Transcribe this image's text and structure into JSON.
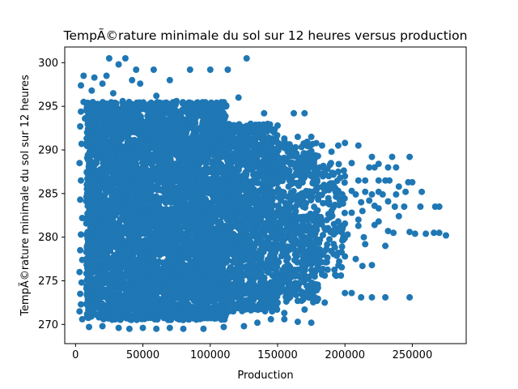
{
  "chart_data": {
    "type": "scatter",
    "title": "TempÃ©rature minimale du sol sur 12 heures versus production",
    "xlabel": "Production",
    "ylabel": "TempÃ©rature minimale du sol sur 12 heures",
    "xlim": [
      -8000,
      290000
    ],
    "ylim": [
      267.8,
      301.8
    ],
    "xticks": [
      0,
      50000,
      100000,
      150000,
      200000,
      250000
    ],
    "xtick_labels": [
      "0",
      "50000",
      "100000",
      "150000",
      "200000",
      "250000"
    ],
    "yticks": [
      270,
      275,
      280,
      285,
      290,
      295,
      300
    ],
    "ytick_labels": [
      "270",
      "275",
      "280",
      "285",
      "290",
      "295",
      "300"
    ],
    "grid": false,
    "legend": "none",
    "marker_color": "#1f77b4",
    "points": [
      [
        25000,
        300.5
      ],
      [
        37000,
        300.5
      ],
      [
        127000,
        300.5
      ],
      [
        32000,
        299.8
      ],
      [
        45000,
        299.2
      ],
      [
        58000,
        299.2
      ],
      [
        85000,
        299.2
      ],
      [
        100000,
        299.2
      ],
      [
        113000,
        299.2
      ],
      [
        6000,
        298.5
      ],
      [
        14000,
        298.3
      ],
      [
        23000,
        298.5
      ],
      [
        42000,
        298.0
      ],
      [
        70000,
        298.0
      ],
      [
        4000,
        297.4
      ],
      [
        20000,
        297.6
      ],
      [
        48000,
        297.6
      ],
      [
        12000,
        296.8
      ],
      [
        28000,
        296.5
      ],
      [
        60000,
        296.2
      ],
      [
        121000,
        296.0
      ],
      [
        6000,
        295.5
      ],
      [
        35000,
        295.6
      ],
      [
        75000,
        295.6
      ],
      [
        90000,
        295.4
      ],
      [
        110000,
        295.1
      ],
      [
        140000,
        294.2
      ],
      [
        162000,
        294.2
      ],
      [
        170000,
        294.2
      ],
      [
        7000,
        293.6
      ],
      [
        45000,
        293.8
      ],
      [
        105000,
        293.6
      ],
      [
        130000,
        293.0
      ],
      [
        150000,
        292.8
      ],
      [
        155000,
        291.3
      ],
      [
        165000,
        291.5
      ],
      [
        175000,
        291.5
      ],
      [
        183000,
        290.5
      ],
      [
        195000,
        290.5
      ],
      [
        200000,
        290.8
      ],
      [
        210000,
        290.5
      ],
      [
        190000,
        289.8
      ],
      [
        180000,
        289.3
      ],
      [
        220000,
        289.2
      ],
      [
        235000,
        289.2
      ],
      [
        248000,
        289.2
      ],
      [
        205000,
        288.5
      ],
      [
        225000,
        288.4
      ],
      [
        218000,
        288.0
      ],
      [
        222000,
        288.0
      ],
      [
        232000,
        288.0
      ],
      [
        238000,
        288.0
      ],
      [
        185000,
        287.8
      ],
      [
        195000,
        287.5
      ],
      [
        188000,
        287.0
      ],
      [
        200000,
        287.0
      ],
      [
        210000,
        286.5
      ],
      [
        215000,
        286.5
      ],
      [
        225000,
        286.5
      ],
      [
        230000,
        286.5
      ],
      [
        233000,
        286.5
      ],
      [
        247000,
        286.3
      ],
      [
        250000,
        286.3
      ],
      [
        185000,
        285.3
      ],
      [
        195000,
        285.3
      ],
      [
        205000,
        285.3
      ],
      [
        215000,
        285.2
      ],
      [
        225000,
        285.2
      ],
      [
        245000,
        285.2
      ],
      [
        257000,
        285.2
      ],
      [
        198000,
        284.9
      ],
      [
        208000,
        284.9
      ],
      [
        220000,
        284.9
      ],
      [
        228000,
        284.9
      ],
      [
        238000,
        284.9
      ],
      [
        240000,
        285.8
      ],
      [
        212000,
        284.0
      ],
      [
        218000,
        284.2
      ],
      [
        232000,
        284.1
      ],
      [
        222000,
        283.6
      ],
      [
        237000,
        283.5
      ],
      [
        244000,
        283.5
      ],
      [
        256000,
        283.5
      ],
      [
        267000,
        283.5
      ],
      [
        270000,
        283.5
      ],
      [
        190000,
        283.0
      ],
      [
        205000,
        282.8
      ],
      [
        213000,
        283.0
      ],
      [
        225000,
        283.3
      ],
      [
        195000,
        281.8
      ],
      [
        210000,
        282.0
      ],
      [
        225000,
        281.8
      ],
      [
        240000,
        282.4
      ],
      [
        185000,
        281.0
      ],
      [
        198000,
        280.9
      ],
      [
        210000,
        281.3
      ],
      [
        222000,
        281.4
      ],
      [
        232000,
        280.7
      ],
      [
        236000,
        280.5
      ],
      [
        248000,
        280.6
      ],
      [
        252000,
        280.4
      ],
      [
        260000,
        280.4
      ],
      [
        266000,
        280.5
      ],
      [
        270000,
        280.5
      ],
      [
        275000,
        280.2
      ],
      [
        202000,
        280.3
      ],
      [
        214000,
        280.0
      ],
      [
        215000,
        279.2
      ],
      [
        230000,
        279.0
      ],
      [
        185000,
        278.4
      ],
      [
        195000,
        278.2
      ],
      [
        200000,
        277.8
      ],
      [
        208000,
        277.5
      ],
      [
        213000,
        276.7
      ],
      [
        220000,
        276.8
      ],
      [
        180000,
        276.8
      ],
      [
        185000,
        275.6
      ],
      [
        197000,
        275.6
      ],
      [
        200000,
        273.6
      ],
      [
        205000,
        273.6
      ],
      [
        212000,
        273.1
      ],
      [
        220000,
        273.1
      ],
      [
        230000,
        273.1
      ],
      [
        248000,
        273.1
      ],
      [
        185000,
        272.5
      ],
      [
        165000,
        272.7
      ],
      [
        150000,
        272.5
      ],
      [
        180000,
        274.2
      ],
      [
        160000,
        274.5
      ],
      [
        145000,
        274.8
      ],
      [
        170000,
        271.7
      ],
      [
        155000,
        271.3
      ],
      [
        140000,
        271.8
      ],
      [
        145000,
        270.6
      ],
      [
        155000,
        270.6
      ],
      [
        165000,
        270.3
      ],
      [
        175000,
        270.2
      ],
      [
        135000,
        270.2
      ],
      [
        125000,
        269.8
      ],
      [
        110000,
        269.7
      ],
      [
        95000,
        269.5
      ],
      [
        80000,
        269.5
      ],
      [
        70000,
        269.6
      ],
      [
        60000,
        269.5
      ],
      [
        50000,
        269.6
      ],
      [
        40000,
        269.5
      ],
      [
        32000,
        269.6
      ],
      [
        20000,
        269.8
      ],
      [
        10000,
        269.7
      ],
      [
        5000,
        270.6
      ],
      [
        3000,
        271.5
      ],
      [
        4000,
        272.3
      ],
      [
        3500,
        273.5
      ],
      [
        4500,
        274.8
      ],
      [
        3000,
        276.0
      ],
      [
        5000,
        277.4
      ],
      [
        3500,
        278.5
      ],
      [
        4000,
        280.3
      ],
      [
        5000,
        282.2
      ],
      [
        3500,
        284.3
      ],
      [
        4000,
        286.5
      ],
      [
        3000,
        288.5
      ],
      [
        4500,
        290.7
      ],
      [
        3500,
        292.7
      ],
      [
        4000,
        294.4
      ]
    ],
    "dense_regions": [
      {
        "x": [
          8000,
          112000
        ],
        "y": [
          270.5,
          295.5
        ],
        "density": 1.0
      },
      {
        "x": [
          112000,
          150000
        ],
        "y": [
          271.5,
          293.0
        ],
        "density": 0.75
      },
      {
        "x": [
          150000,
          180000
        ],
        "y": [
          272.5,
          291.0
        ],
        "density": 0.45
      },
      {
        "x": [
          180000,
          200000
        ],
        "y": [
          275.5,
          288.5
        ],
        "density": 0.2
      }
    ]
  }
}
